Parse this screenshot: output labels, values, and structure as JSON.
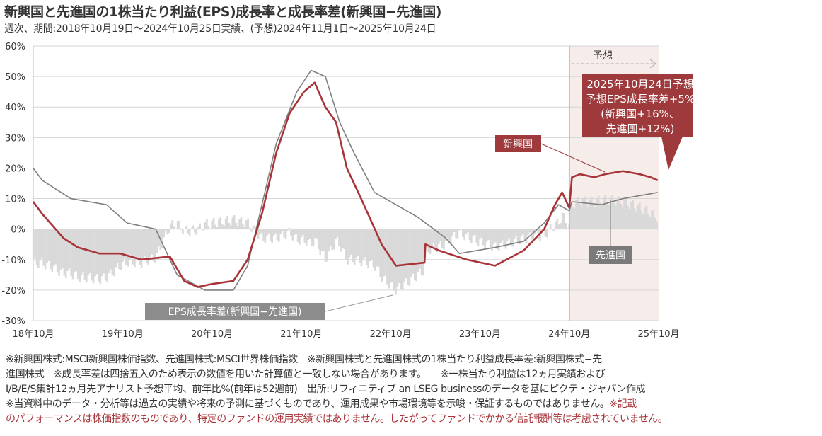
{
  "title": "新興国と先進国の1株当たり利益(EPS)成長率と成長率差(新興国−先進国)",
  "subtitle": "週次、期間:2018年10月19日～2024年10月25日実績、(予想)2024年11月1日～2025年10月24日",
  "chart_data": {
    "type": "line",
    "ylabel": "",
    "xlabel": "",
    "ylim": [
      -30,
      60
    ],
    "yticks": [
      "60%",
      "50%",
      "40%",
      "30%",
      "20%",
      "10%",
      "0%",
      "-10%",
      "-20%",
      "-30%"
    ],
    "ytick_values": [
      60,
      50,
      40,
      30,
      20,
      10,
      0,
      -10,
      -20,
      -30
    ],
    "xlim": [
      2018.8,
      2025.8
    ],
    "xticks": [
      "18年10月",
      "19年10月",
      "20年10月",
      "21年10月",
      "22年10月",
      "23年10月",
      "24年10月",
      "25年10月"
    ],
    "xtick_values": [
      2018.8,
      2019.8,
      2020.8,
      2021.8,
      2022.8,
      2023.8,
      2024.8,
      2025.8
    ],
    "forecast_start": 2024.8,
    "forecast_label": "予想",
    "grid": true,
    "series": [
      {
        "name": "新興国",
        "color": "#a8343a",
        "points": [
          [
            2018.8,
            9
          ],
          [
            2018.9,
            5
          ],
          [
            2019.14,
            -3
          ],
          [
            2019.3,
            -6
          ],
          [
            2019.54,
            -8
          ],
          [
            2019.77,
            -8
          ],
          [
            2020.01,
            -10
          ],
          [
            2020.33,
            -9
          ],
          [
            2020.49,
            -17
          ],
          [
            2020.64,
            -19
          ],
          [
            2020.8,
            -18
          ],
          [
            2021.04,
            -17
          ],
          [
            2021.2,
            -10
          ],
          [
            2021.36,
            5
          ],
          [
            2021.52,
            25
          ],
          [
            2021.67,
            38
          ],
          [
            2021.83,
            45
          ],
          [
            2021.95,
            48
          ],
          [
            2022.07,
            40
          ],
          [
            2022.19,
            35
          ],
          [
            2022.31,
            20
          ],
          [
            2022.47,
            10
          ],
          [
            2022.7,
            -5
          ],
          [
            2022.86,
            -12
          ],
          [
            2023.18,
            -11
          ],
          [
            2023.19,
            -5
          ],
          [
            2023.34,
            -7
          ],
          [
            2023.65,
            -10
          ],
          [
            2023.97,
            -12
          ],
          [
            2024.29,
            -7
          ],
          [
            2024.52,
            0
          ],
          [
            2024.64,
            8
          ],
          [
            2024.72,
            12
          ],
          [
            2024.8,
            7
          ],
          [
            2024.83,
            17
          ],
          [
            2024.92,
            18
          ],
          [
            2025.08,
            17
          ],
          [
            2025.2,
            18
          ],
          [
            2025.4,
            19
          ],
          [
            2025.59,
            18
          ],
          [
            2025.71,
            17
          ],
          [
            2025.79,
            16
          ]
        ]
      },
      {
        "name": "先進国",
        "color": "#808080",
        "points": [
          [
            2018.8,
            20
          ],
          [
            2018.9,
            16
          ],
          [
            2019.22,
            10
          ],
          [
            2019.62,
            8
          ],
          [
            2019.85,
            2
          ],
          [
            2020.17,
            0
          ],
          [
            2020.25,
            -5
          ],
          [
            2020.41,
            -15
          ],
          [
            2020.72,
            -20
          ],
          [
            2021.04,
            -20
          ],
          [
            2021.2,
            -12
          ],
          [
            2021.36,
            8
          ],
          [
            2021.52,
            28
          ],
          [
            2021.75,
            45
          ],
          [
            2021.91,
            52
          ],
          [
            2022.07,
            50
          ],
          [
            2022.23,
            35
          ],
          [
            2022.39,
            25
          ],
          [
            2022.62,
            12
          ],
          [
            2022.86,
            8
          ],
          [
            2023.1,
            4
          ],
          [
            2023.42,
            -3
          ],
          [
            2023.57,
            -8
          ],
          [
            2023.97,
            -6
          ],
          [
            2024.29,
            -4
          ],
          [
            2024.52,
            2
          ],
          [
            2024.68,
            8
          ],
          [
            2024.8,
            6
          ],
          [
            2024.83,
            9
          ],
          [
            2025.16,
            8
          ],
          [
            2025.4,
            10
          ],
          [
            2025.79,
            12
          ]
        ]
      },
      {
        "name": "EPS成長率差(新興国−先進国)",
        "type": "bar",
        "color": "#d9d9d9",
        "derived": "新興国 − 先進国"
      }
    ],
    "annotations": {
      "callout": [
        "2025年10月24日予想",
        "予想EPS成長率差+5%",
        "(新興国+16%、",
        "先進国+12%)"
      ],
      "em_label": "新興国",
      "dm_label": "先進国",
      "gap_label": "EPS成長率差(新興国−先進国)"
    }
  },
  "notes": {
    "line1": "※新興国株式:MSCI新興国株価指数、先進国株式:MSCI世界株価指数　※新興国株式と先進国株式の1株当たり利益成長率差:新興国株式−先",
    "line2": "進国株式　※成長率差は四捨五入のため表示の数値を用いた計算値と一致しない場合があります。　　※一株当たり利益は12ヵ月実績および",
    "line3": "I/B/E/S集計12ヵ月先アナリスト予想平均、前年比%(前年は52週前)　出所:リフィニティブ an LSEG businessのデータを基にピクテ・ジャパン作成",
    "line4a": "※当資料中のデータ・分析等は過去の実績や将来の予測に基づくものであり、運用成果や市場環境等を示唆・保証するものではありません。",
    "line4b": "※記載",
    "line5": "のパフォーマンスは株価指数のものであり、特定のファンドの運用実績ではありません。したがってファンドでかかる信託報酬等は考慮されていません。"
  }
}
